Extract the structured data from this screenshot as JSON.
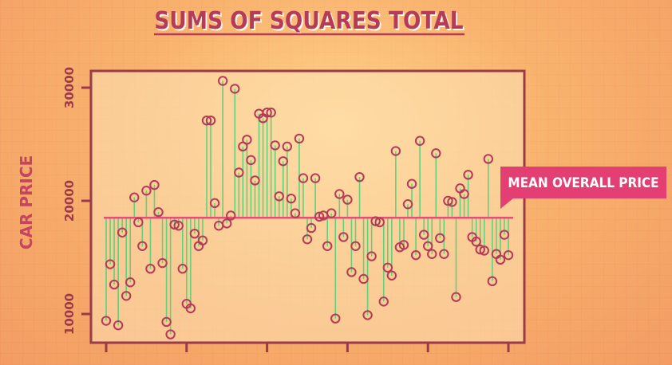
{
  "chart_data": {
    "type": "scatter",
    "title": "SUMS OF SQUARES TOTAL",
    "xlabel": "",
    "ylabel": "CAR PRICE",
    "ylim": [
      7500,
      32000
    ],
    "xlim": [
      0.5,
      101.5
    ],
    "yticks": [
      "10000",
      "20000",
      "30000"
    ],
    "ytick_values": [
      10000,
      20000,
      30000
    ],
    "xticks": [
      1,
      21,
      41,
      61,
      81,
      101
    ],
    "mean": 18500,
    "mean_label": "MEAN OVERALL PRICE",
    "grid": false,
    "series": [
      {
        "x": [
          1,
          2,
          3,
          4,
          5,
          6,
          7,
          8,
          9,
          10,
          11,
          12,
          13,
          14,
          15,
          16,
          17,
          18,
          19,
          20,
          21,
          22,
          23,
          24,
          25,
          26,
          27,
          28,
          29,
          30,
          31,
          32,
          33,
          34,
          35,
          36,
          37,
          38,
          39,
          40,
          41,
          42,
          43,
          44,
          45,
          46,
          47,
          48,
          49,
          50,
          51,
          52,
          53,
          54,
          55,
          56,
          57,
          58,
          59,
          60,
          61,
          62,
          63,
          64,
          65,
          66,
          67,
          68,
          69,
          70,
          71,
          72,
          73,
          74,
          75,
          76,
          77,
          78,
          79,
          80,
          81,
          82,
          83,
          84,
          85,
          86,
          87,
          88,
          89,
          90,
          91,
          92,
          93,
          94,
          95,
          96,
          97,
          98,
          99,
          100,
          101
        ],
        "y": [
          9400,
          14400,
          12600,
          9000,
          17200,
          11600,
          12800,
          20300,
          18100,
          16000,
          20900,
          14000,
          21400,
          19000,
          14500,
          9300,
          8200,
          17900,
          17800,
          14000,
          10900,
          10500,
          17100,
          16000,
          16500,
          27100,
          27100,
          19800,
          17800,
          30600,
          18000,
          18700,
          29900,
          22500,
          24800,
          25400,
          23600,
          21800,
          27700,
          27300,
          27800,
          27800,
          24900,
          20400,
          23500,
          24800,
          20200,
          18900,
          25500,
          22000,
          16600,
          17600,
          22000,
          18600,
          18700,
          16000,
          18900,
          9600,
          20600,
          16800,
          20100,
          13700,
          16000,
          22100,
          13100,
          9900,
          15100,
          18200,
          18100,
          11100,
          14100,
          13400,
          24400,
          15900,
          16100,
          19700,
          21500,
          15200,
          25300,
          17000,
          16000,
          15300,
          24200,
          16700,
          15300,
          20000,
          19900,
          11500,
          21100,
          20600,
          22300,
          16800,
          16400,
          15700,
          15600,
          23700,
          12900,
          15300,
          14800,
          17000,
          15200
        ]
      }
    ],
    "colors": {
      "markers": "#b53a56",
      "stems": "#5fd27e",
      "mean_line": "#e84d76",
      "axis": "#9c3a4a",
      "title": "#b53a56",
      "label_box": "#e43f72",
      "plot_bg": "#fde3b8"
    }
  }
}
